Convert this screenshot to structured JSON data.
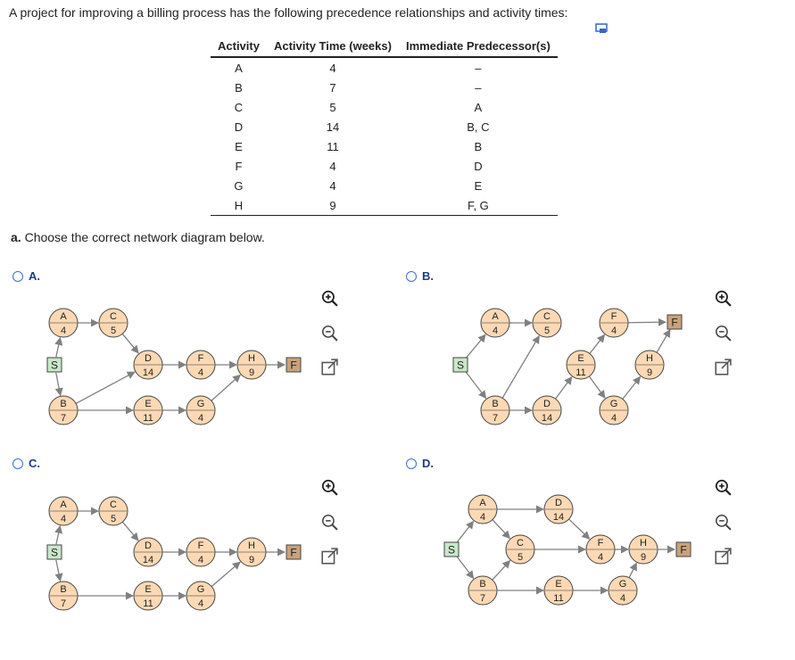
{
  "question": "A project for improving a billing process has the following precedence relationships and activity times:",
  "table": {
    "headers": [
      "Activity",
      "Activity Time (weeks)",
      "Immediate Predecessor(s)"
    ],
    "rows": [
      [
        "A",
        "4",
        "–"
      ],
      [
        "B",
        "7",
        "–"
      ],
      [
        "C",
        "5",
        "A"
      ],
      [
        "D",
        "14",
        "B, C"
      ],
      [
        "E",
        "11",
        "B"
      ],
      [
        "F",
        "4",
        "D"
      ],
      [
        "G",
        "4",
        "E"
      ],
      [
        "H",
        "9",
        "F, G"
      ]
    ]
  },
  "part_a": {
    "label": "a.",
    "text": "Choose the correct network diagram below."
  },
  "options": [
    {
      "key": "A.",
      "selected": false
    },
    {
      "key": "B.",
      "selected": false
    },
    {
      "key": "C.",
      "selected": false
    },
    {
      "key": "D.",
      "selected": false
    }
  ],
  "diagram_labels": {
    "start": "S",
    "finish": "F"
  },
  "diagrams": [
    {
      "nodes": [
        {
          "id": "S",
          "type": "box",
          "label": "S"
        },
        {
          "id": "A",
          "label": "A",
          "time": "4"
        },
        {
          "id": "B",
          "label": "B",
          "time": "7"
        },
        {
          "id": "C",
          "label": "C",
          "time": "5"
        },
        {
          "id": "D",
          "label": "D",
          "time": "14"
        },
        {
          "id": "E",
          "label": "E",
          "time": "11"
        },
        {
          "id": "F",
          "label": "F",
          "time": "4"
        },
        {
          "id": "G",
          "label": "G",
          "time": "4"
        },
        {
          "id": "H",
          "label": "H",
          "time": "9"
        },
        {
          "id": "FIN",
          "type": "box",
          "label": "F"
        }
      ],
      "edges": [
        [
          "S",
          "A"
        ],
        [
          "S",
          "B"
        ],
        [
          "A",
          "C"
        ],
        [
          "C",
          "D"
        ],
        [
          "B",
          "D"
        ],
        [
          "B",
          "E"
        ],
        [
          "D",
          "F"
        ],
        [
          "E",
          "G"
        ],
        [
          "F",
          "H"
        ],
        [
          "G",
          "H"
        ],
        [
          "H",
          "FIN"
        ]
      ]
    },
    {
      "nodes": [
        {
          "id": "S",
          "type": "box",
          "label": "S"
        },
        {
          "id": "A",
          "label": "A",
          "time": "4"
        },
        {
          "id": "B",
          "label": "B",
          "time": "7"
        },
        {
          "id": "C",
          "label": "C",
          "time": "5"
        },
        {
          "id": "D",
          "label": "D",
          "time": "14"
        },
        {
          "id": "E",
          "label": "E",
          "time": "11"
        },
        {
          "id": "F",
          "label": "F",
          "time": "4"
        },
        {
          "id": "G",
          "label": "G",
          "time": "4"
        },
        {
          "id": "H",
          "label": "H",
          "time": "9"
        },
        {
          "id": "FIN",
          "type": "box",
          "label": "F"
        }
      ],
      "edges": [
        [
          "S",
          "A"
        ],
        [
          "S",
          "B"
        ],
        [
          "A",
          "C"
        ],
        [
          "B",
          "C"
        ],
        [
          "B",
          "D"
        ],
        [
          "D",
          "E"
        ],
        [
          "E",
          "F"
        ],
        [
          "E",
          "G"
        ],
        [
          "F",
          "FIN"
        ],
        [
          "G",
          "H"
        ],
        [
          "H",
          "FIN"
        ]
      ]
    },
    {
      "nodes": [
        {
          "id": "S",
          "type": "box",
          "label": "S"
        },
        {
          "id": "A",
          "label": "A",
          "time": "4"
        },
        {
          "id": "B",
          "label": "B",
          "time": "7"
        },
        {
          "id": "C",
          "label": "C",
          "time": "5"
        },
        {
          "id": "D",
          "label": "D",
          "time": "14"
        },
        {
          "id": "E",
          "label": "E",
          "time": "11"
        },
        {
          "id": "F",
          "label": "F",
          "time": "4"
        },
        {
          "id": "G",
          "label": "G",
          "time": "4"
        },
        {
          "id": "H",
          "label": "H",
          "time": "9"
        },
        {
          "id": "FIN",
          "type": "box",
          "label": "F"
        }
      ],
      "edges": [
        [
          "S",
          "A"
        ],
        [
          "S",
          "B"
        ],
        [
          "A",
          "C"
        ],
        [
          "C",
          "D"
        ],
        [
          "B",
          "E"
        ],
        [
          "D",
          "F"
        ],
        [
          "E",
          "G"
        ],
        [
          "F",
          "H"
        ],
        [
          "G",
          "H"
        ],
        [
          "H",
          "FIN"
        ]
      ]
    },
    {
      "nodes": [
        {
          "id": "S",
          "type": "box",
          "label": "S"
        },
        {
          "id": "A",
          "label": "A",
          "time": "4"
        },
        {
          "id": "B",
          "label": "B",
          "time": "7"
        },
        {
          "id": "C",
          "label": "C",
          "time": "5"
        },
        {
          "id": "D",
          "label": "D",
          "time": "14"
        },
        {
          "id": "E",
          "label": "E",
          "time": "11"
        },
        {
          "id": "F",
          "label": "F",
          "time": "4"
        },
        {
          "id": "G",
          "label": "G",
          "time": "4"
        },
        {
          "id": "H",
          "label": "H",
          "time": "9"
        },
        {
          "id": "FIN",
          "type": "box",
          "label": "F"
        }
      ],
      "edges": [
        [
          "S",
          "A"
        ],
        [
          "S",
          "B"
        ],
        [
          "A",
          "C"
        ],
        [
          "A",
          "D"
        ],
        [
          "B",
          "C"
        ],
        [
          "B",
          "E"
        ],
        [
          "C",
          "F"
        ],
        [
          "D",
          "F"
        ],
        [
          "E",
          "G"
        ],
        [
          "F",
          "H"
        ],
        [
          "G",
          "H"
        ],
        [
          "H",
          "FIN"
        ]
      ]
    }
  ],
  "tools": [
    "zoom-in-icon",
    "zoom-out-icon",
    "popout-icon"
  ],
  "colors": {
    "node_fill": "#fcd9b4",
    "start_fill": "#c9e7c9",
    "finish_fill": "#c9a27a",
    "edge": "#808080",
    "radio": "#3b6fd0",
    "option_label": "#1d3b8b"
  }
}
